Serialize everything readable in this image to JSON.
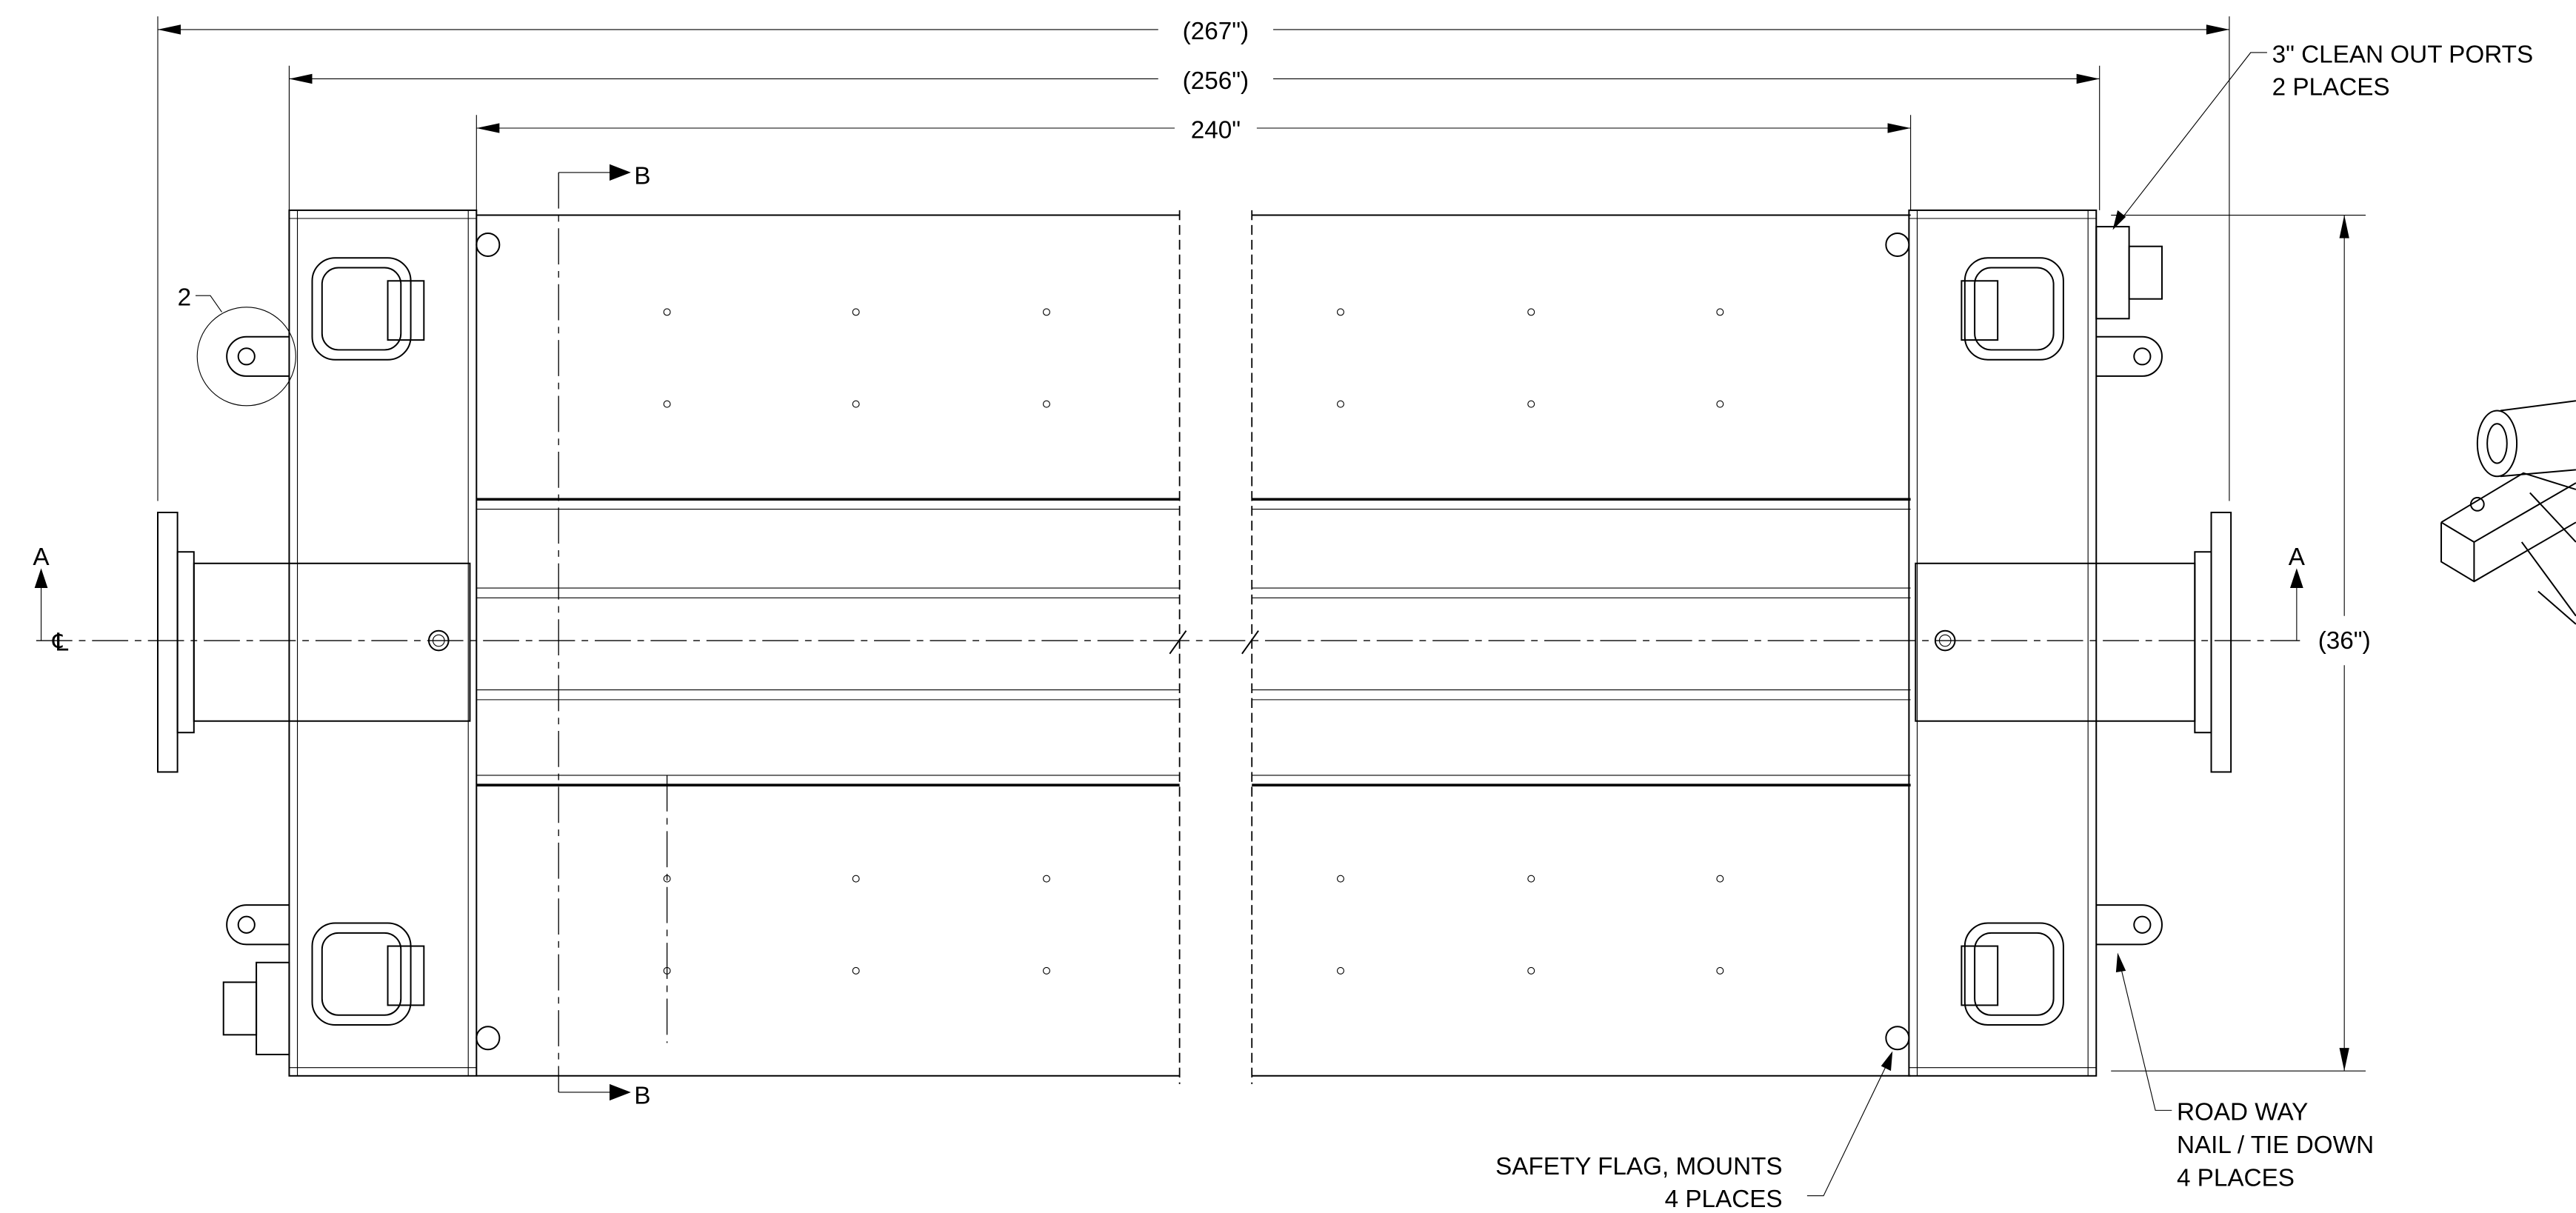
{
  "dimensions": {
    "overall": "(267\")",
    "middle": "(256\")",
    "length": "240\"",
    "width": "(36\")"
  },
  "section_labels": {
    "b_top": "B",
    "b_bottom": "B",
    "a_left": "A",
    "a_right": "A"
  },
  "detail_callout": "2",
  "centerline": "℄",
  "notes": {
    "clean_out_ports": [
      "3\" CLEAN OUT PORTS",
      "2 PLACES"
    ],
    "safety_flag": [
      "SAFETY FLAG, MOUNTS",
      "4 PLACES"
    ],
    "road_way": [
      "ROAD WAY",
      "NAIL / TIE DOWN",
      "4 PLACES"
    ]
  }
}
